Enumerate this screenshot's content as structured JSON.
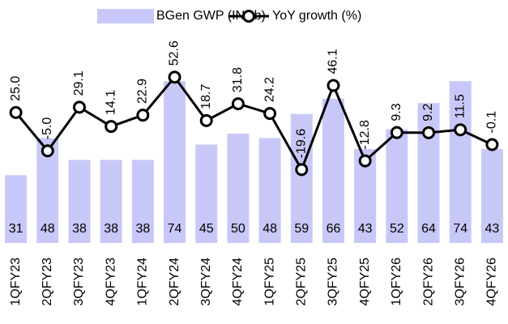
{
  "chart_data": {
    "type": "bar-line",
    "categories": [
      "1QFY23",
      "2QFY23",
      "3QFY23",
      "4QFY23",
      "1QFY24",
      "2QFY24",
      "3QFY24",
      "4QFY24",
      "1QFY25",
      "2QFY25",
      "3QFY25",
      "4QFY25",
      "1QFY26",
      "2QFY26",
      "3QFY26",
      "4QFY26"
    ],
    "series": [
      {
        "name": "BGen GWP (INRb)",
        "color": "#c8c8f8",
        "type": "bar",
        "values": [
          31,
          48,
          38,
          38,
          38,
          74,
          45,
          50,
          48,
          59,
          66,
          43,
          52,
          64,
          74,
          43
        ]
      },
      {
        "name": "YoY growth (%)",
        "color": "#000000",
        "type": "line",
        "axis": "y2",
        "values": [
          25.0,
          -5.0,
          29.1,
          14.1,
          22.9,
          52.6,
          18.7,
          31.8,
          24.2,
          -19.6,
          46.1,
          -12.8,
          9.3,
          9.2,
          11.5,
          -0.1
        ],
        "value_labels": [
          "25.0",
          "-5.0",
          "29.1",
          "14.1",
          "22.9",
          "52.6",
          "18.7",
          "31.8",
          "24.2",
          "-19.6",
          "46.1",
          "-12.8",
          "9.3",
          "9.2",
          "11.5",
          "-0.1"
        ]
      }
    ],
    "ylim": [
      0,
      110
    ],
    "y2lim": [
      -77,
      111
    ]
  }
}
